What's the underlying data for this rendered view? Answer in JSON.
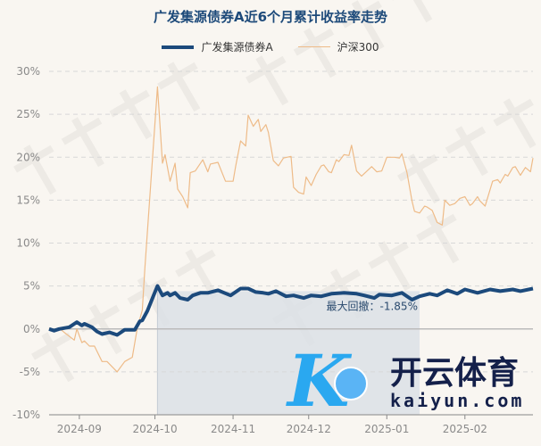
{
  "chart_data": {
    "type": "line",
    "title": "广发集源债券A近6个月累计收益率走势",
    "xlabel": "",
    "ylabel": "",
    "x_range": [
      "2024-08-20",
      "2025-02-28"
    ],
    "ylim": [
      -10,
      30
    ],
    "y_ticks": [
      "30%",
      "25%",
      "20%",
      "15%",
      "10%",
      "5%",
      "0%",
      "-5%",
      "-10%"
    ],
    "y_tick_values": [
      30,
      25,
      20,
      15,
      10,
      5,
      0,
      -5,
      -10
    ],
    "x_ticks": [
      {
        "label": "2024-09",
        "date": "2024-09-01"
      },
      {
        "label": "2024-10",
        "date": "2024-10-01"
      },
      {
        "label": "2024-11",
        "date": "2024-11-01"
      },
      {
        "label": "2024-12",
        "date": "2024-12-01"
      },
      {
        "label": "2025-01",
        "date": "2025-01-01"
      },
      {
        "label": "2025-02",
        "date": "2025-02-01"
      }
    ],
    "grid": "horizontal-dashed",
    "legend_position": "top",
    "series": [
      {
        "name": "广发集源债券A",
        "color": "#1c4a7c",
        "points": [
          [
            "2024-08-20",
            0
          ],
          [
            "2024-08-22",
            -0.2
          ],
          [
            "2024-08-24",
            0
          ],
          [
            "2024-08-28",
            0.2
          ],
          [
            "2024-08-31",
            0.8
          ],
          [
            "2024-09-02",
            0.4
          ],
          [
            "2024-09-03",
            0.6
          ],
          [
            "2024-09-06",
            0.2
          ],
          [
            "2024-09-08",
            -0.3
          ],
          [
            "2024-09-10",
            -0.6
          ],
          [
            "2024-09-13",
            -0.4
          ],
          [
            "2024-09-16",
            -0.7
          ],
          [
            "2024-09-19",
            -0.1
          ],
          [
            "2024-09-23",
            -0.1
          ],
          [
            "2024-09-25",
            0.9
          ],
          [
            "2024-09-26",
            1.0
          ],
          [
            "2024-09-28",
            2.1
          ],
          [
            "2024-10-01",
            4.3
          ],
          [
            "2024-10-02",
            5.0
          ],
          [
            "2024-10-04",
            3.9
          ],
          [
            "2024-10-06",
            4.2
          ],
          [
            "2024-10-07",
            3.9
          ],
          [
            "2024-10-09",
            4.2
          ],
          [
            "2024-10-11",
            3.6
          ],
          [
            "2024-10-14",
            3.4
          ],
          [
            "2024-10-16",
            3.9
          ],
          [
            "2024-10-19",
            4.2
          ],
          [
            "2024-10-22",
            4.2
          ],
          [
            "2024-10-26",
            4.5
          ],
          [
            "2024-10-31",
            3.9
          ],
          [
            "2024-11-04",
            4.7
          ],
          [
            "2024-11-07",
            4.7
          ],
          [
            "2024-11-10",
            4.3
          ],
          [
            "2024-11-13",
            4.2
          ],
          [
            "2024-11-15",
            4.1
          ],
          [
            "2024-11-18",
            4.4
          ],
          [
            "2024-11-22",
            3.8
          ],
          [
            "2024-11-25",
            3.9
          ],
          [
            "2024-11-29",
            3.6
          ],
          [
            "2024-12-02",
            3.9
          ],
          [
            "2024-12-06",
            3.8
          ],
          [
            "2024-12-10",
            4.1
          ],
          [
            "2024-12-15",
            4.2
          ],
          [
            "2024-12-20",
            4.1
          ],
          [
            "2024-12-23",
            3.9
          ],
          [
            "2024-12-27",
            3.6
          ],
          [
            "2024-12-29",
            4.0
          ],
          [
            "2025-01-03",
            3.9
          ],
          [
            "2025-01-07",
            4.2
          ],
          [
            "2025-01-11",
            3.4
          ],
          [
            "2025-01-14",
            3.8
          ],
          [
            "2025-01-18",
            4.1
          ],
          [
            "2025-01-21",
            3.9
          ],
          [
            "2025-01-25",
            4.5
          ],
          [
            "2025-01-29",
            4.1
          ],
          [
            "2025-02-01",
            4.6
          ],
          [
            "2025-02-06",
            4.2
          ],
          [
            "2025-02-11",
            4.6
          ],
          [
            "2025-02-15",
            4.4
          ],
          [
            "2025-02-20",
            4.6
          ],
          [
            "2025-02-23",
            4.4
          ],
          [
            "2025-02-28",
            4.7
          ]
        ]
      },
      {
        "name": "沪深300",
        "color": "#eebb88",
        "points": [
          [
            "2024-08-20",
            0.1
          ],
          [
            "2024-08-22",
            -0.2
          ],
          [
            "2024-08-24",
            0.1
          ],
          [
            "2024-08-26",
            -0.4
          ],
          [
            "2024-08-30",
            -1.3
          ],
          [
            "2024-08-31",
            0.0
          ],
          [
            "2024-09-02",
            -1.6
          ],
          [
            "2024-09-03",
            -1.4
          ],
          [
            "2024-09-05",
            -2.0
          ],
          [
            "2024-09-07",
            -2.0
          ],
          [
            "2024-09-10",
            -3.8
          ],
          [
            "2024-09-12",
            -3.8
          ],
          [
            "2024-09-16",
            -5.0
          ],
          [
            "2024-09-19",
            -3.8
          ],
          [
            "2024-09-22",
            -3.3
          ],
          [
            "2024-09-24",
            0.1
          ],
          [
            "2024-09-26",
            2.2
          ],
          [
            "2024-09-27",
            7.1
          ],
          [
            "2024-10-02",
            28.2
          ],
          [
            "2024-10-04",
            19.3
          ],
          [
            "2024-10-05",
            20.3
          ],
          [
            "2024-10-07",
            17.2
          ],
          [
            "2024-10-09",
            19.3
          ],
          [
            "2024-10-10",
            16.3
          ],
          [
            "2024-10-12",
            15.4
          ],
          [
            "2024-10-14",
            14.1
          ],
          [
            "2024-10-15",
            18.2
          ],
          [
            "2024-10-17",
            18.4
          ],
          [
            "2024-10-20",
            19.7
          ],
          [
            "2024-10-22",
            18.3
          ],
          [
            "2024-10-23",
            19.2
          ],
          [
            "2024-10-26",
            19.4
          ],
          [
            "2024-10-29",
            17.2
          ],
          [
            "2024-11-01",
            17.2
          ],
          [
            "2024-11-02",
            18.9
          ],
          [
            "2024-11-04",
            21.9
          ],
          [
            "2024-11-06",
            21.3
          ],
          [
            "2024-11-07",
            24.9
          ],
          [
            "2024-11-09",
            23.6
          ],
          [
            "2024-11-11",
            24.4
          ],
          [
            "2024-11-12",
            23.0
          ],
          [
            "2024-11-14",
            23.8
          ],
          [
            "2024-11-15",
            22.9
          ],
          [
            "2024-11-17",
            19.6
          ],
          [
            "2024-11-19",
            19.0
          ],
          [
            "2024-11-21",
            19.9
          ],
          [
            "2024-11-24",
            20.1
          ],
          [
            "2024-11-25",
            16.5
          ],
          [
            "2024-11-27",
            15.9
          ],
          [
            "2024-11-29",
            15.7
          ],
          [
            "2024-11-30",
            17.7
          ],
          [
            "2024-12-02",
            16.7
          ],
          [
            "2024-12-04",
            18.0
          ],
          [
            "2024-12-06",
            19.0
          ],
          [
            "2024-12-07",
            19.1
          ],
          [
            "2024-12-09",
            18.3
          ],
          [
            "2024-12-10",
            18.2
          ],
          [
            "2024-12-12",
            19.7
          ],
          [
            "2024-12-13",
            19.5
          ],
          [
            "2024-12-15",
            20.3
          ],
          [
            "2024-12-17",
            20.2
          ],
          [
            "2024-12-18",
            21.4
          ],
          [
            "2024-12-20",
            18.4
          ],
          [
            "2024-12-22",
            17.8
          ],
          [
            "2024-12-26",
            18.9
          ],
          [
            "2024-12-28",
            18.3
          ],
          [
            "2024-12-30",
            18.4
          ],
          [
            "2025-01-01",
            20.0
          ],
          [
            "2025-01-04",
            20.0
          ],
          [
            "2025-01-06",
            19.9
          ],
          [
            "2025-01-07",
            20.4
          ],
          [
            "2025-01-09",
            18.2
          ],
          [
            "2025-01-11",
            14.9
          ],
          [
            "2025-01-12",
            13.7
          ],
          [
            "2025-01-14",
            13.5
          ],
          [
            "2025-01-16",
            14.3
          ],
          [
            "2025-01-17",
            14.2
          ],
          [
            "2025-01-19",
            13.8
          ],
          [
            "2025-01-21",
            12.4
          ],
          [
            "2025-01-23",
            12.1
          ],
          [
            "2025-01-24",
            15.0
          ],
          [
            "2025-01-26",
            14.4
          ],
          [
            "2025-01-28",
            14.6
          ],
          [
            "2025-01-30",
            15.2
          ],
          [
            "2025-02-01",
            15.4
          ],
          [
            "2025-02-03",
            14.4
          ],
          [
            "2025-02-04",
            14.6
          ],
          [
            "2025-02-06",
            15.4
          ],
          [
            "2025-02-07",
            14.9
          ],
          [
            "2025-02-09",
            14.3
          ],
          [
            "2025-02-12",
            17.2
          ],
          [
            "2025-02-14",
            17.4
          ],
          [
            "2025-02-15",
            17.0
          ],
          [
            "2025-02-17",
            18.0
          ],
          [
            "2025-02-18",
            17.8
          ],
          [
            "2025-02-20",
            18.8
          ],
          [
            "2025-02-21",
            18.9
          ],
          [
            "2025-02-23",
            17.9
          ],
          [
            "2025-02-25",
            18.8
          ],
          [
            "2025-02-27",
            18.3
          ],
          [
            "2025-02-28",
            19.9
          ]
        ]
      }
    ],
    "max_drawdown": {
      "label": "最大回撤：-1.85%",
      "start": "2024-10-02",
      "end": "2025-01-14",
      "y_range": [
        -10,
        4.4
      ],
      "fill": "#d9e0e6"
    }
  },
  "watermark": {
    "text": "证券之星"
  },
  "logo": {
    "text": "开云体育",
    "subtext": "kaiyun.com"
  }
}
